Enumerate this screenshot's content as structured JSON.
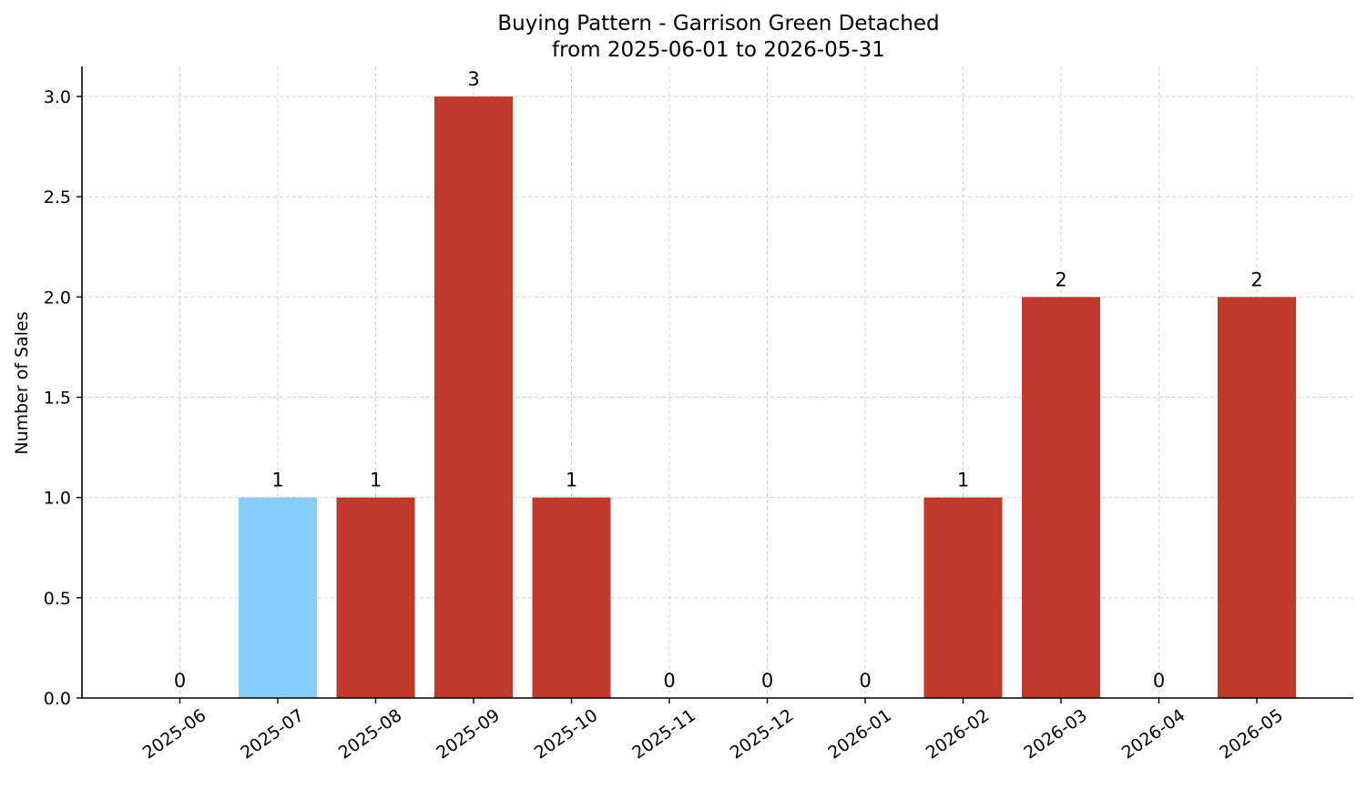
{
  "chart_data": {
    "type": "bar",
    "title": "Buying Pattern - Garrison Green Detached",
    "subtitle": "from 2025-06-01 to 2026-05-31",
    "xlabel": "",
    "ylabel": "Number of Sales",
    "categories": [
      "2025-06",
      "2025-07",
      "2025-08",
      "2025-09",
      "2025-10",
      "2025-11",
      "2025-12",
      "2026-01",
      "2026-02",
      "2026-03",
      "2026-04",
      "2026-05"
    ],
    "values": [
      0,
      1,
      1,
      3,
      1,
      0,
      0,
      0,
      1,
      2,
      0,
      2
    ],
    "bar_colors": [
      "#c0392b",
      "#87cefa",
      "#c0392b",
      "#c0392b",
      "#c0392b",
      "#c0392b",
      "#c0392b",
      "#c0392b",
      "#c0392b",
      "#c0392b",
      "#c0392b",
      "#c0392b"
    ],
    "data_labels": [
      "0",
      "1",
      "1",
      "3",
      "1",
      "0",
      "0",
      "0",
      "1",
      "2",
      "0",
      "2"
    ],
    "ylim": [
      0,
      3.15
    ],
    "yticks": [
      "0.0",
      "0.5",
      "1.0",
      "1.5",
      "2.0",
      "2.5",
      "3.0"
    ],
    "ytick_values": [
      0,
      0.5,
      1.0,
      1.5,
      2.0,
      2.5,
      3.0
    ],
    "grid": true,
    "grid_color": "#d3d3d3",
    "axis_color": "#000000"
  }
}
